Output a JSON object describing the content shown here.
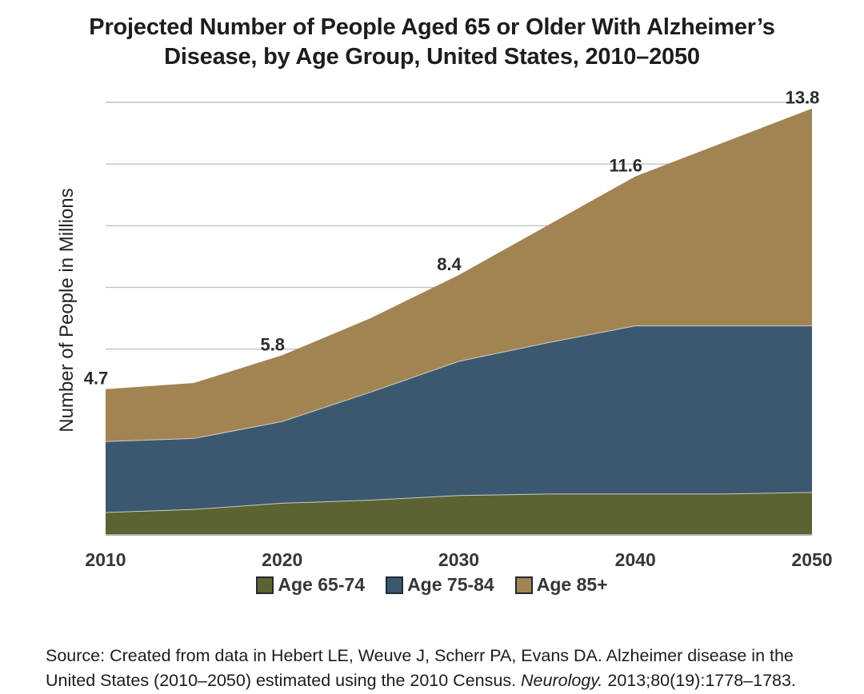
{
  "chart_data": {
    "type": "area",
    "stacked": true,
    "title": "Projected Number of People Aged 65 or Older With Alzheimer’s Disease, by Age Group, United States, 2010–2050",
    "title_lines": [
      "Projected Number of People Aged 65 or Older With Alzheimer’s",
      "Disease, by Age Group, United States, 2010–2050"
    ],
    "ylabel": "Number of People in Millions",
    "xlabel": "",
    "x": [
      2010,
      2015,
      2020,
      2025,
      2030,
      2035,
      2040,
      2045,
      2050
    ],
    "x_ticks": [
      "2010",
      "2020",
      "2030",
      "2040",
      "2050"
    ],
    "series": [
      {
        "name": "Age 65-74",
        "color": "#5c6231",
        "values": [
          0.7,
          0.8,
          1.0,
          1.1,
          1.25,
          1.3,
          1.3,
          1.3,
          1.35
        ]
      },
      {
        "name": "Age 75-84",
        "color": "#3a5971",
        "values": [
          2.3,
          2.3,
          2.65,
          3.5,
          4.35,
          4.9,
          5.45,
          5.45,
          5.4
        ]
      },
      {
        "name": "Age 85+",
        "color": "#a28452",
        "values": [
          1.7,
          1.8,
          2.15,
          2.4,
          2.8,
          3.8,
          4.85,
          5.95,
          7.05
        ]
      }
    ],
    "totals_by_decade": [
      {
        "year": 2010,
        "total": 4.7,
        "label": "4.7"
      },
      {
        "year": 2020,
        "total": 5.8,
        "label": "5.8"
      },
      {
        "year": 2030,
        "total": 8.4,
        "label": "8.4"
      },
      {
        "year": 2040,
        "total": 11.6,
        "label": "11.6"
      },
      {
        "year": 2050,
        "total": 13.8,
        "label": "13.8"
      }
    ],
    "ylim": [
      0,
      14
    ],
    "grid_step": 2,
    "grid": true,
    "legend_position": "bottom"
  },
  "source": {
    "prefix": "Source: Created from data in Hebert LE, Weuve J, Scherr PA, Evans DA. Alzheimer disease in the United States (2010–2050) estimated using the 2010 Census. ",
    "italic": "Neurology.",
    "suffix": " 2013;80(19):1778–1783."
  },
  "colors": {
    "background": "#ffffff",
    "grid_line": "#c1c1c1",
    "axis_line": "#aeaeae",
    "seam_line": "#d8d5ca",
    "legend_swatch_border": "#1f2a36",
    "title_text": "#1d1d1d",
    "tick_text": "#363636",
    "data_label_text": "#2b2b2b"
  }
}
